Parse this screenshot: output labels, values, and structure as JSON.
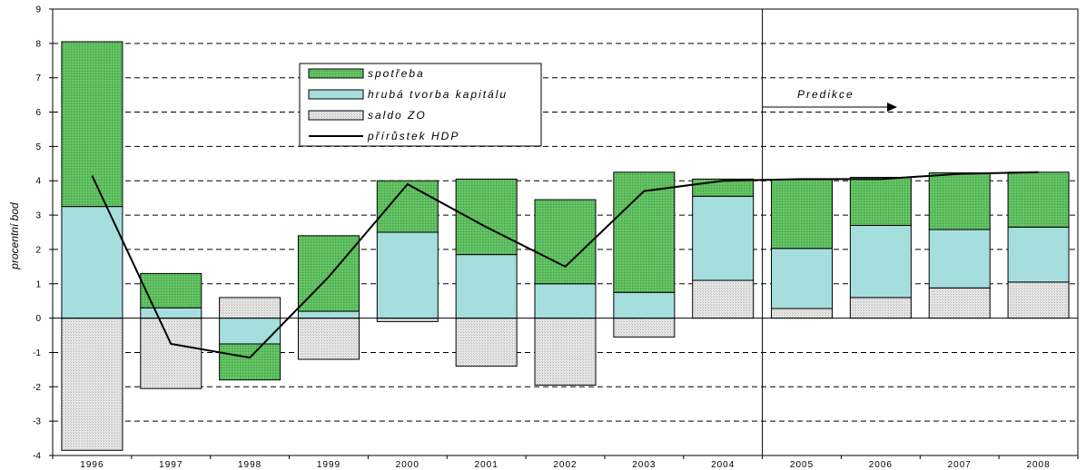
{
  "chart_data": {
    "type": "bar",
    "stacked": true,
    "categories": [
      "1996",
      "1997",
      "1998",
      "1999",
      "2000",
      "2001",
      "2002",
      "2003",
      "2004",
      "2005",
      "2006",
      "2007",
      "2008"
    ],
    "series": [
      {
        "name": "spotřeba",
        "kind": "bar",
        "color": "#5fbf60",
        "values": [
          4.8,
          1.0,
          -1.05,
          2.2,
          1.5,
          2.2,
          2.45,
          3.5,
          0.5,
          2.0,
          1.4,
          1.65,
          1.6
        ]
      },
      {
        "name": "hrubá tvorba kapitálu",
        "kind": "bar",
        "color": "#a6dede",
        "values": [
          3.25,
          0.3,
          -0.75,
          0.2,
          2.5,
          1.85,
          1.0,
          0.75,
          2.45,
          1.75,
          2.1,
          1.7,
          1.6
        ]
      },
      {
        "name": "saldo ZO",
        "kind": "bar",
        "color": "#dcdcdc",
        "values": [
          -3.85,
          -2.05,
          0.6,
          -1.2,
          -0.1,
          -1.4,
          -1.95,
          -0.55,
          1.1,
          0.28,
          0.6,
          0.88,
          1.05
        ]
      },
      {
        "name": "přírůstek HDP",
        "kind": "line",
        "color": "#000000",
        "values": [
          4.15,
          -0.75,
          -1.15,
          1.2,
          3.9,
          2.65,
          1.5,
          3.7,
          4.0,
          4.05,
          4.05,
          4.2,
          4.25
        ]
      }
    ],
    "ylabel": "procentní bod",
    "ylim": [
      -4,
      9
    ],
    "yticks": [
      "-4",
      "-3",
      "-2",
      "-1",
      "0",
      "1",
      "2",
      "3",
      "4",
      "5",
      "6",
      "7",
      "8",
      "9"
    ],
    "grid": "dashed-horizontal",
    "legend_position": "top-center",
    "annotation": {
      "text": "Predikce",
      "after_category": "2004"
    }
  }
}
